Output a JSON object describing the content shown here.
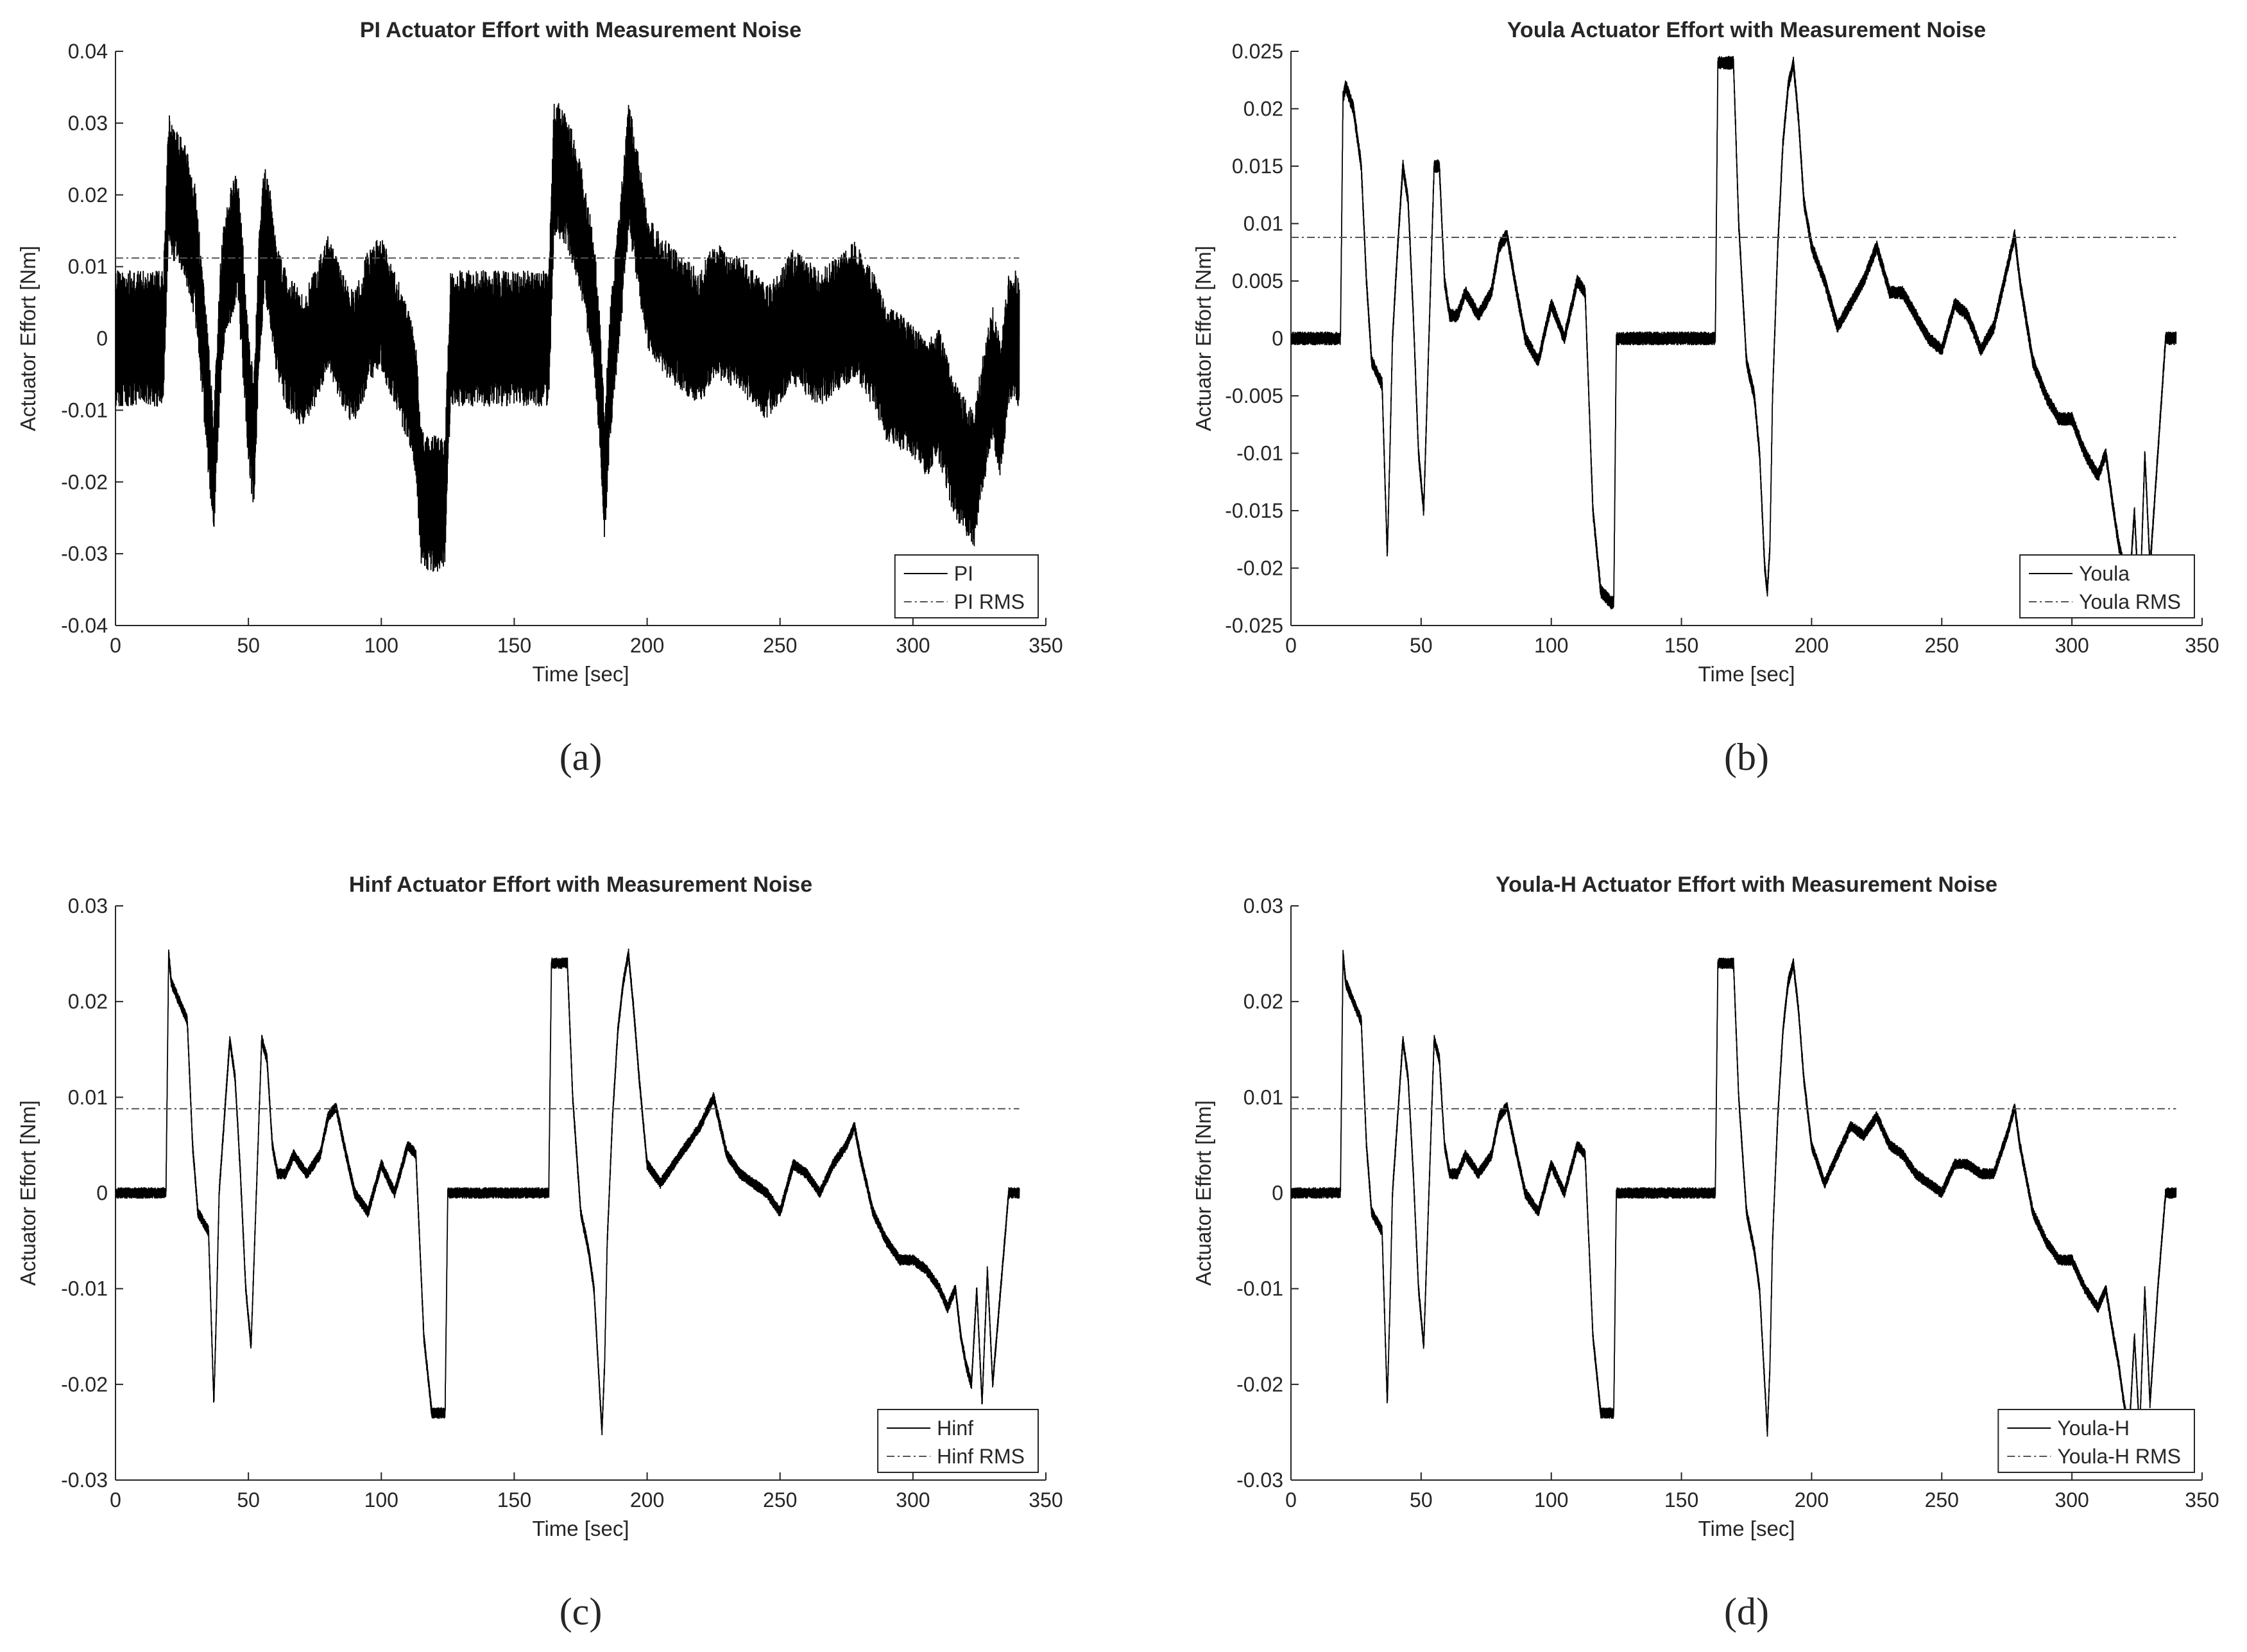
{
  "colors": {
    "line": "#000000",
    "rms": "#555555",
    "axis": "#262626",
    "background": "#ffffff"
  },
  "chart_data": [
    {
      "type": "line",
      "panel": "(a)",
      "title": "PI Actuator Effort with Measurement Noise",
      "xlabel": "Time [sec]",
      "ylabel": "Actuator Effort [Nm]",
      "xlim": [
        0,
        350
      ],
      "ylim": [
        -0.04,
        0.04
      ],
      "xticks": [
        0,
        50,
        100,
        150,
        200,
        250,
        300,
        350
      ],
      "yticks": [
        -0.04,
        -0.03,
        -0.02,
        -0.01,
        0,
        0.01,
        0.02,
        0.03,
        0.04
      ],
      "ytick_labels": [
        "-0.04",
        "-0.03",
        "-0.02",
        "-0.01",
        "0",
        "0.01",
        "0.02",
        "0.03",
        "0.04"
      ],
      "grid": false,
      "legend_position": "bottom-right",
      "noise_amplitude": 0.0095,
      "rms_value": 0.0112,
      "series": [
        {
          "name": "PI",
          "style": "solid",
          "x": [
            0,
            18,
            20,
            22,
            26,
            30,
            34,
            37,
            38,
            40,
            42,
            46,
            50,
            52,
            54,
            56,
            58,
            60,
            64,
            70,
            75,
            80,
            85,
            90,
            95,
            100,
            105,
            110,
            113,
            115,
            118,
            122,
            124,
            126,
            163,
            165,
            170,
            175,
            180,
            182,
            184,
            186,
            190,
            193,
            196,
            200,
            205,
            210,
            220,
            225,
            235,
            245,
            255,
            265,
            272,
            278,
            285,
            290,
            300,
            305,
            310,
            315,
            320,
            323,
            326,
            330,
            333,
            336,
            340
          ],
          "values": [
            0,
            0,
            0.022,
            0.02,
            0.018,
            0.012,
            -0.005,
            -0.02,
            -0.01,
            0.005,
            0.01,
            0.015,
            -0.008,
            -0.015,
            0.005,
            0.015,
            0.012,
            0.005,
            0,
            -0.003,
            0,
            0.005,
            0,
            -0.003,
            0.003,
            0.005,
            0,
            -0.005,
            -0.01,
            -0.022,
            -0.023,
            -0.023,
            -0.022,
            0,
            0,
            0.024,
            0.022,
            0.015,
            0.005,
            -0.005,
            -0.02,
            -0.005,
            0.01,
            0.024,
            0.018,
            0.008,
            0.005,
            0.003,
            0,
            0.004,
            0.002,
            -0.002,
            0.003,
            0,
            0.002,
            0.004,
            0,
            -0.005,
            -0.007,
            -0.01,
            -0.008,
            -0.015,
            -0.018,
            -0.02,
            -0.012,
            -0.005,
            -0.01,
            0,
            0
          ]
        },
        {
          "name": "PI RMS",
          "style": "dashdot",
          "values": [
            0.0112
          ]
        }
      ]
    },
    {
      "type": "line",
      "panel": "(b)",
      "title": "Youla Actuator Effort with Measurement Noise",
      "xlabel": "Time [sec]",
      "ylabel": "Actuator Effort [Nm]",
      "xlim": [
        0,
        350
      ],
      "ylim": [
        -0.025,
        0.025
      ],
      "xticks": [
        0,
        50,
        100,
        150,
        200,
        250,
        300,
        350
      ],
      "yticks": [
        -0.025,
        -0.02,
        -0.015,
        -0.01,
        -0.005,
        0,
        0.005,
        0.01,
        0.015,
        0.02,
        0.025
      ],
      "ytick_labels": [
        "-0.025",
        "-0.02",
        "-0.015",
        "-0.01",
        "-0.005",
        "0",
        "0.005",
        "0.01",
        "0.015",
        "0.02",
        "0.025"
      ],
      "grid": false,
      "legend_position": "bottom-right",
      "noise_amplitude": 0.0006,
      "rms_value": 0.0088,
      "series": [
        {
          "name": "Youla",
          "style": "solid",
          "x": [
            0,
            19,
            20,
            21,
            24,
            27,
            29,
            31,
            33,
            35,
            37,
            38,
            39,
            41,
            43,
            45,
            47,
            49,
            51,
            53,
            55,
            57,
            59,
            61,
            64,
            67,
            72,
            77,
            80,
            83,
            86,
            90,
            95,
            100,
            105,
            110,
            113,
            116,
            119,
            123,
            124,
            125,
            163,
            164,
            166,
            170,
            172,
            175,
            178,
            180,
            182,
            183,
            184,
            185,
            187,
            189,
            191,
            193,
            195,
            197,
            200,
            205,
            210,
            215,
            220,
            225,
            230,
            235,
            240,
            245,
            250,
            255,
            260,
            265,
            270,
            275,
            278,
            280,
            285,
            290,
            295,
            300,
            305,
            310,
            313,
            316,
            318,
            320,
            322,
            324,
            326,
            328,
            330,
            333,
            336,
            340
          ],
          "values": [
            0,
            0,
            0.021,
            0.022,
            0.02,
            0.015,
            0.005,
            -0.002,
            -0.003,
            -0.004,
            -0.019,
            -0.01,
            0,
            0.008,
            0.015,
            0.012,
            0.002,
            -0.01,
            -0.015,
            0,
            0.015,
            0.015,
            0.005,
            0.002,
            0.002,
            0.004,
            0.002,
            0.004,
            0.008,
            0.009,
            0.005,
            0,
            -0.002,
            0.003,
            0,
            0.005,
            0.004,
            -0.015,
            -0.022,
            -0.023,
            -0.023,
            0,
            0,
            0.024,
            0.024,
            0.024,
            0.01,
            -0.002,
            -0.005,
            -0.01,
            -0.02,
            -0.022,
            -0.018,
            -0.005,
            0.008,
            0.017,
            0.022,
            0.024,
            0.019,
            0.012,
            0.008,
            0.005,
            0.001,
            0.003,
            0.005,
            0.008,
            0.004,
            0.004,
            0.002,
            0,
            -0.001,
            0.003,
            0.002,
            -0.001,
            0.001,
            0.006,
            0.009,
            0.005,
            -0.002,
            -0.005,
            -0.007,
            -0.007,
            -0.01,
            -0.012,
            -0.01,
            -0.015,
            -0.018,
            -0.02,
            -0.022,
            -0.015,
            -0.024,
            -0.01,
            -0.02,
            -0.01,
            0,
            0
          ]
        },
        {
          "name": "Youla RMS",
          "style": "dashdot",
          "values": [
            0.0088
          ]
        }
      ]
    },
    {
      "type": "line",
      "panel": "(c)",
      "title": "Hinf Actuator Effort with Measurement Noise",
      "xlabel": "Time [sec]",
      "ylabel": "Actuator Effort [Nm]",
      "xlim": [
        0,
        350
      ],
      "ylim": [
        -0.03,
        0.03
      ],
      "xticks": [
        0,
        50,
        100,
        150,
        200,
        250,
        300,
        350
      ],
      "yticks": [
        -0.03,
        -0.02,
        -0.01,
        0,
        0.01,
        0.02,
        0.03
      ],
      "ytick_labels": [
        "-0.03",
        "-0.02",
        "-0.01",
        "0",
        "0.01",
        "0.02",
        "0.03"
      ],
      "grid": false,
      "legend_position": "bottom-right",
      "noise_amplitude": 0.0006,
      "rms_value": 0.0088,
      "series": [
        {
          "name": "Hinf",
          "style": "solid",
          "x": [
            0,
            19,
            20,
            21,
            24,
            27,
            29,
            31,
            33,
            35,
            37,
            38,
            39,
            41,
            43,
            45,
            47,
            49,
            51,
            53,
            55,
            57,
            59,
            61,
            64,
            67,
            72,
            77,
            80,
            83,
            86,
            90,
            95,
            100,
            105,
            110,
            113,
            116,
            119,
            123,
            124,
            125,
            163,
            164,
            166,
            170,
            172,
            175,
            178,
            180,
            182,
            183,
            184,
            185,
            187,
            189,
            191,
            193,
            195,
            197,
            200,
            205,
            210,
            215,
            220,
            225,
            230,
            235,
            240,
            245,
            250,
            255,
            260,
            265,
            270,
            275,
            278,
            280,
            285,
            290,
            295,
            300,
            305,
            310,
            313,
            316,
            318,
            320,
            322,
            324,
            326,
            328,
            330,
            333,
            336,
            340
          ],
          "values": [
            0,
            0,
            0.025,
            0.022,
            0.02,
            0.018,
            0.005,
            -0.002,
            -0.003,
            -0.004,
            -0.022,
            -0.012,
            0,
            0.008,
            0.016,
            0.012,
            0.002,
            -0.01,
            -0.016,
            0,
            0.016,
            0.014,
            0.005,
            0.002,
            0.002,
            0.004,
            0.002,
            0.004,
            0.008,
            0.009,
            0.005,
            0,
            -0.002,
            0.003,
            0,
            0.005,
            0.004,
            -0.015,
            -0.023,
            -0.023,
            -0.023,
            0,
            0,
            0.024,
            0.024,
            0.024,
            0.01,
            -0.002,
            -0.006,
            -0.01,
            -0.02,
            -0.025,
            -0.018,
            -0.005,
            0.008,
            0.017,
            0.022,
            0.025,
            0.019,
            0.012,
            0.003,
            0.001,
            0.003,
            0.005,
            0.007,
            0.01,
            0.004,
            0.002,
            0.001,
            0,
            -0.002,
            0.003,
            0.002,
            0,
            0.003,
            0.005,
            0.007,
            0.004,
            -0.002,
            -0.005,
            -0.007,
            -0.007,
            -0.008,
            -0.01,
            -0.012,
            -0.01,
            -0.015,
            -0.018,
            -0.02,
            -0.01,
            -0.022,
            -0.008,
            -0.02,
            -0.01,
            0,
            0
          ]
        },
        {
          "name": "Hinf RMS",
          "style": "dashdot",
          "values": [
            0.0088
          ]
        }
      ]
    },
    {
      "type": "line",
      "panel": "(d)",
      "title": "Youla-H Actuator Effort with Measurement Noise",
      "xlabel": "Time [sec]",
      "ylabel": "Actuator Effort [Nm]",
      "xlim": [
        0,
        350
      ],
      "ylim": [
        -0.03,
        0.03
      ],
      "xticks": [
        0,
        50,
        100,
        150,
        200,
        250,
        300,
        350
      ],
      "yticks": [
        -0.03,
        -0.02,
        -0.01,
        0,
        0.01,
        0.02,
        0.03
      ],
      "ytick_labels": [
        "-0.03",
        "-0.02",
        "-0.01",
        "0",
        "0.01",
        "0.02",
        "0.03"
      ],
      "grid": false,
      "legend_position": "bottom-right",
      "noise_amplitude": 0.0006,
      "rms_value": 0.0088,
      "series": [
        {
          "name": "Youla-H",
          "style": "solid",
          "x": [
            0,
            19,
            20,
            21,
            24,
            27,
            29,
            31,
            33,
            35,
            37,
            38,
            39,
            41,
            43,
            45,
            47,
            49,
            51,
            53,
            55,
            57,
            59,
            61,
            64,
            67,
            72,
            77,
            80,
            83,
            86,
            90,
            95,
            100,
            105,
            110,
            113,
            116,
            119,
            123,
            124,
            125,
            163,
            164,
            166,
            170,
            172,
            175,
            178,
            180,
            182,
            183,
            184,
            185,
            187,
            189,
            191,
            193,
            195,
            197,
            200,
            205,
            210,
            215,
            220,
            225,
            230,
            235,
            240,
            245,
            250,
            255,
            260,
            265,
            270,
            275,
            278,
            280,
            285,
            290,
            295,
            300,
            305,
            310,
            313,
            316,
            318,
            320,
            322,
            324,
            326,
            328,
            330,
            333,
            336,
            340
          ],
          "values": [
            0,
            0,
            0.025,
            0.022,
            0.02,
            0.018,
            0.005,
            -0.002,
            -0.003,
            -0.004,
            -0.022,
            -0.012,
            0,
            0.008,
            0.016,
            0.012,
            0.002,
            -0.01,
            -0.016,
            0,
            0.016,
            0.014,
            0.005,
            0.002,
            0.002,
            0.004,
            0.002,
            0.004,
            0.008,
            0.009,
            0.005,
            0,
            -0.002,
            0.003,
            0,
            0.005,
            0.004,
            -0.015,
            -0.023,
            -0.023,
            -0.023,
            0,
            0,
            0.024,
            0.024,
            0.024,
            0.01,
            -0.002,
            -0.006,
            -0.01,
            -0.02,
            -0.025,
            -0.018,
            -0.005,
            0.008,
            0.017,
            0.022,
            0.024,
            0.019,
            0.012,
            0.005,
            0.001,
            0.004,
            0.007,
            0.006,
            0.008,
            0.005,
            0.004,
            0.002,
            0.001,
            0,
            0.003,
            0.003,
            0.002,
            0.002,
            0.006,
            0.009,
            0.005,
            -0.002,
            -0.005,
            -0.007,
            -0.007,
            -0.01,
            -0.012,
            -0.01,
            -0.015,
            -0.018,
            -0.022,
            -0.025,
            -0.015,
            -0.025,
            -0.01,
            -0.022,
            -0.01,
            0,
            0
          ]
        },
        {
          "name": "Youla-H RMS",
          "style": "dashdot",
          "values": [
            0.0088
          ]
        }
      ]
    }
  ]
}
